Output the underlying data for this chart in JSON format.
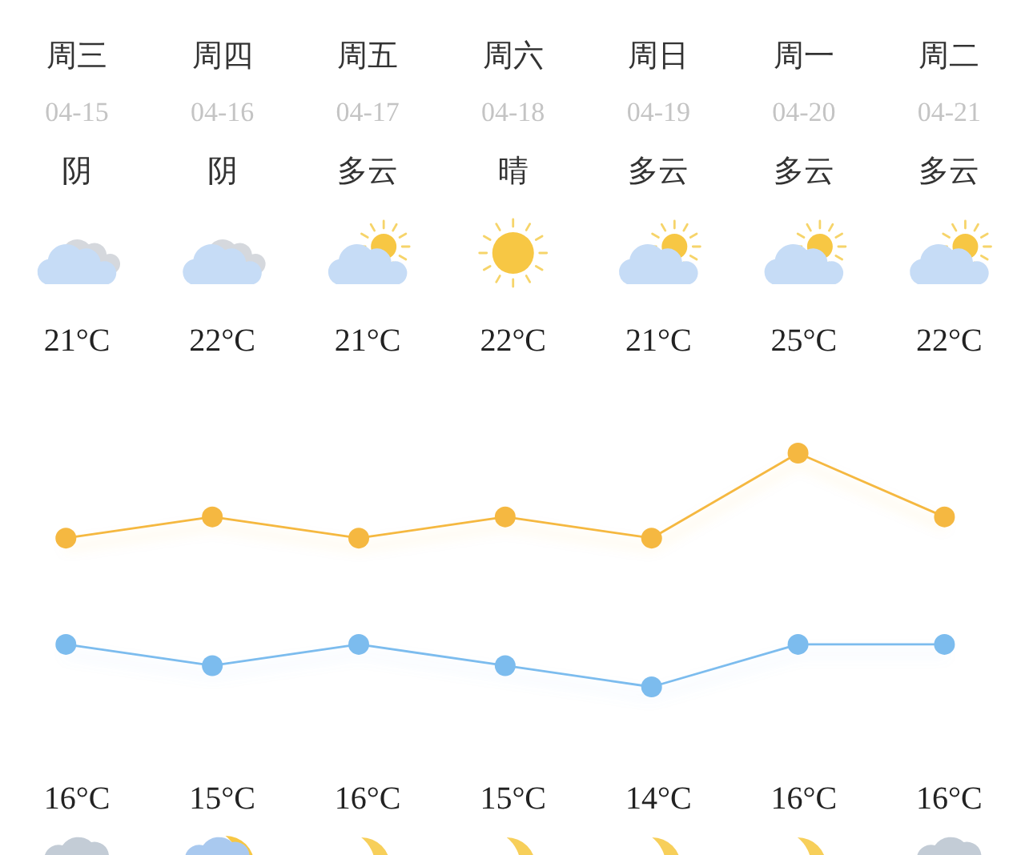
{
  "chart_data": {
    "type": "line",
    "categories": [
      "周三\n04-15\n阴",
      "周四\n04-16\n阴",
      "周五\n04-17\n多云",
      "周六\n04-18\n晴",
      "周日\n04-19\n多云",
      "周一\n04-20\n多云",
      "周二\n04-21\n多云"
    ],
    "series": [
      {
        "color": "#f5b841",
        "values": [
          21,
          22,
          21,
          22,
          21,
          25,
          22
        ],
        "value_labels": [
          "21°C",
          "22°C",
          "21°C",
          "22°C",
          "21°C",
          "25°C",
          "22°C"
        ]
      },
      {
        "color": "#7cbcee",
        "values": [
          16,
          15,
          16,
          15,
          14,
          16,
          16
        ],
        "value_labels": [
          "16°C",
          "15°C",
          "16°C",
          "15°C",
          "14°C",
          "16°C",
          "16°C"
        ]
      }
    ],
    "marker": "circle",
    "line_style": "solid"
  }
}
